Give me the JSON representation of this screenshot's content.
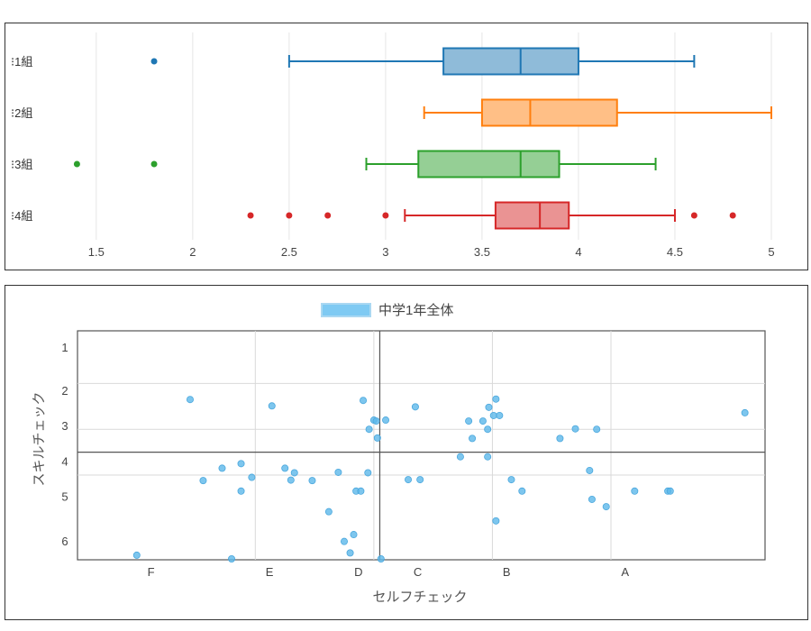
{
  "chart_data": [
    {
      "type": "box",
      "orientation": "horizontal",
      "xlim": [
        1.3,
        5.0
      ],
      "xticks": [
        1.5,
        2,
        2.5,
        3,
        3.5,
        4,
        4.5,
        5
      ],
      "xtick_labels": [
        "1.5",
        "2",
        "2.5",
        "3",
        "3.5",
        "4",
        "4.5",
        "5"
      ],
      "grid": true,
      "series": [
        {
          "name": "1組",
          "color": "#1f77b4",
          "fill": "#8fbbd9",
          "min": 2.5,
          "q1": 3.3,
          "median": 3.7,
          "q3": 4.0,
          "max": 4.6,
          "outliers": [
            1.8
          ]
        },
        {
          "name": "2組",
          "color": "#ff7f0e",
          "fill": "#ffbf86",
          "min": 3.2,
          "q1": 3.5,
          "median": 3.75,
          "q3": 4.2,
          "max": 5.0,
          "outliers": []
        },
        {
          "name": "3組",
          "color": "#2ca02c",
          "fill": "#95cf95",
          "min": 2.9,
          "q1": 3.17,
          "median": 3.7,
          "q3": 3.9,
          "max": 4.4,
          "outliers": [
            1.4,
            1.8
          ]
        },
        {
          "name": "4組",
          "color": "#d62728",
          "fill": "#ea9393",
          "min": 3.1,
          "q1": 3.57,
          "median": 3.8,
          "q3": 3.95,
          "max": 4.5,
          "outliers": [
            2.3,
            2.5,
            2.7,
            3.0,
            4.6,
            4.8
          ]
        }
      ]
    },
    {
      "type": "scatter",
      "legend": "中学1年全体",
      "legend_position": "top-center",
      "xlabel": "セルフチェック",
      "ylabel": "スキルチェック",
      "xlim": [
        0.8,
        6.6
      ],
      "ylim": [
        6.55,
        1.55
      ],
      "x_categories": [
        {
          "label": "F",
          "value": 1.42
        },
        {
          "label": "E",
          "value": 2.42
        },
        {
          "label": "D",
          "value": 3.17
        },
        {
          "label": "C",
          "value": 3.67
        },
        {
          "label": "B",
          "value": 4.42
        },
        {
          "label": "A",
          "value": 5.42
        }
      ],
      "y_categories": [
        {
          "label": "1",
          "value": 1.9
        },
        {
          "label": "2",
          "value": 2.85
        },
        {
          "label": "3",
          "value": 3.62
        },
        {
          "label": "4",
          "value": 4.39
        },
        {
          "label": "5",
          "value": 5.16
        },
        {
          "label": "6",
          "value": 6.14
        }
      ],
      "gridlines_x": [
        2.3,
        3.3,
        4.3,
        5.3
      ],
      "gridlines_y": [
        2.7,
        3.7,
        4.7
      ],
      "reference_x": 3.35,
      "reference_y": 4.2,
      "color": "#5cb8ea",
      "points": [
        [
          1.3,
          6.45
        ],
        [
          1.75,
          3.05
        ],
        [
          1.86,
          4.82
        ],
        [
          2.02,
          4.55
        ],
        [
          2.1,
          6.65
        ],
        [
          2.18,
          4.45
        ],
        [
          2.18,
          5.05
        ],
        [
          2.27,
          4.75
        ],
        [
          2.44,
          3.19
        ],
        [
          2.55,
          4.55
        ],
        [
          2.6,
          4.81
        ],
        [
          2.63,
          4.65
        ],
        [
          2.78,
          4.82
        ],
        [
          2.92,
          5.5
        ],
        [
          3.0,
          4.64
        ],
        [
          3.05,
          6.15
        ],
        [
          3.1,
          6.4
        ],
        [
          3.13,
          6.0
        ],
        [
          3.15,
          5.05
        ],
        [
          3.19,
          5.05
        ],
        [
          3.21,
          3.07
        ],
        [
          3.25,
          4.65
        ],
        [
          3.26,
          3.7
        ],
        [
          3.3,
          3.5
        ],
        [
          3.32,
          3.52
        ],
        [
          3.33,
          3.89
        ],
        [
          3.36,
          6.7
        ],
        [
          3.4,
          3.5
        ],
        [
          3.59,
          4.8
        ],
        [
          3.65,
          3.21
        ],
        [
          3.69,
          4.8
        ],
        [
          4.03,
          4.3
        ],
        [
          4.1,
          3.52
        ],
        [
          4.13,
          3.9
        ],
        [
          4.22,
          3.52
        ],
        [
          4.26,
          3.7
        ],
        [
          4.26,
          4.3
        ],
        [
          4.27,
          3.22
        ],
        [
          4.31,
          3.4
        ],
        [
          4.33,
          3.04
        ],
        [
          4.33,
          5.7
        ],
        [
          4.36,
          3.4
        ],
        [
          4.46,
          4.8
        ],
        [
          4.55,
          5.05
        ],
        [
          4.87,
          3.9
        ],
        [
          5.0,
          3.69
        ],
        [
          5.12,
          4.6
        ],
        [
          5.14,
          5.23
        ],
        [
          5.18,
          3.7
        ],
        [
          5.26,
          5.39
        ],
        [
          5.5,
          5.05
        ],
        [
          5.78,
          5.05
        ],
        [
          5.8,
          5.05
        ],
        [
          6.43,
          3.34
        ]
      ]
    }
  ]
}
